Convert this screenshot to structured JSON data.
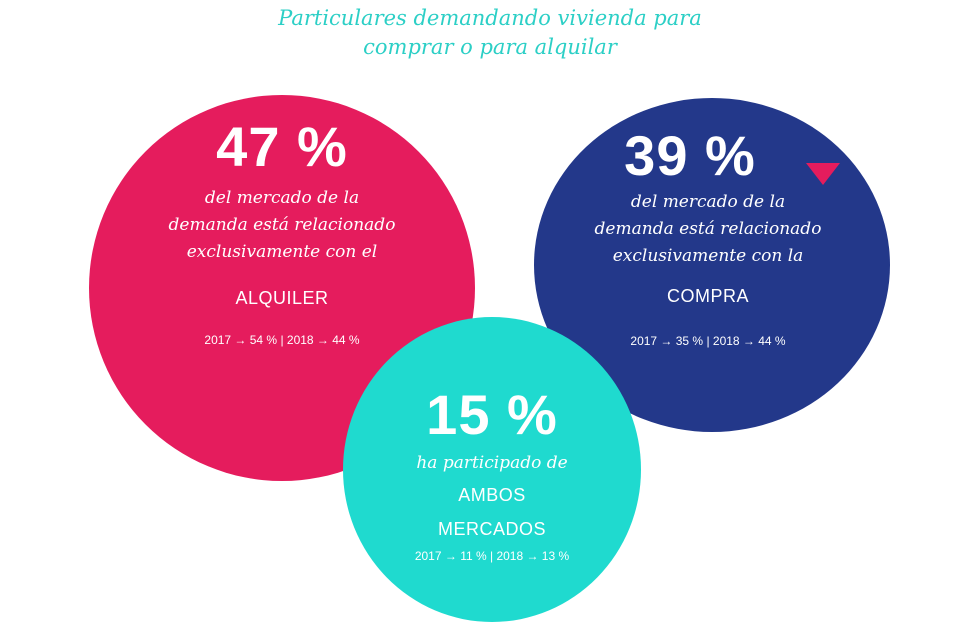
{
  "title": {
    "line1": "Particulares demandando vivienda para",
    "line2": "comprar o para alquilar"
  },
  "colors": {
    "title": "#2ccfc6",
    "alquiler": "#e51c5d",
    "compra": "#23388a",
    "ambos": "#1fdacf",
    "trend_down": "#e51c5d"
  },
  "alquiler": {
    "percent": "47 %",
    "desc_line1": "del mercado de la",
    "desc_line2": "demanda está relacionado",
    "desc_line3": "exclusivamente con el",
    "category": "ALQUILER",
    "history": "2017 → 54 % | 2018 → 44 %"
  },
  "compra": {
    "percent": "39 %",
    "trend_icon": "triangle-down-icon",
    "desc_line1": "del mercado de la",
    "desc_line2": "demanda está relacionado",
    "desc_line3": "exclusivamente con la",
    "category": "COMPRA",
    "history": "2017 → 35 % | 2018 → 44 %"
  },
  "ambos": {
    "percent": "15 %",
    "desc_line1": "ha participado de",
    "category_line1": "AMBOS",
    "category_line2": "MERCADOS",
    "history": "2017 → 11 % | 2018 → 13 %"
  }
}
